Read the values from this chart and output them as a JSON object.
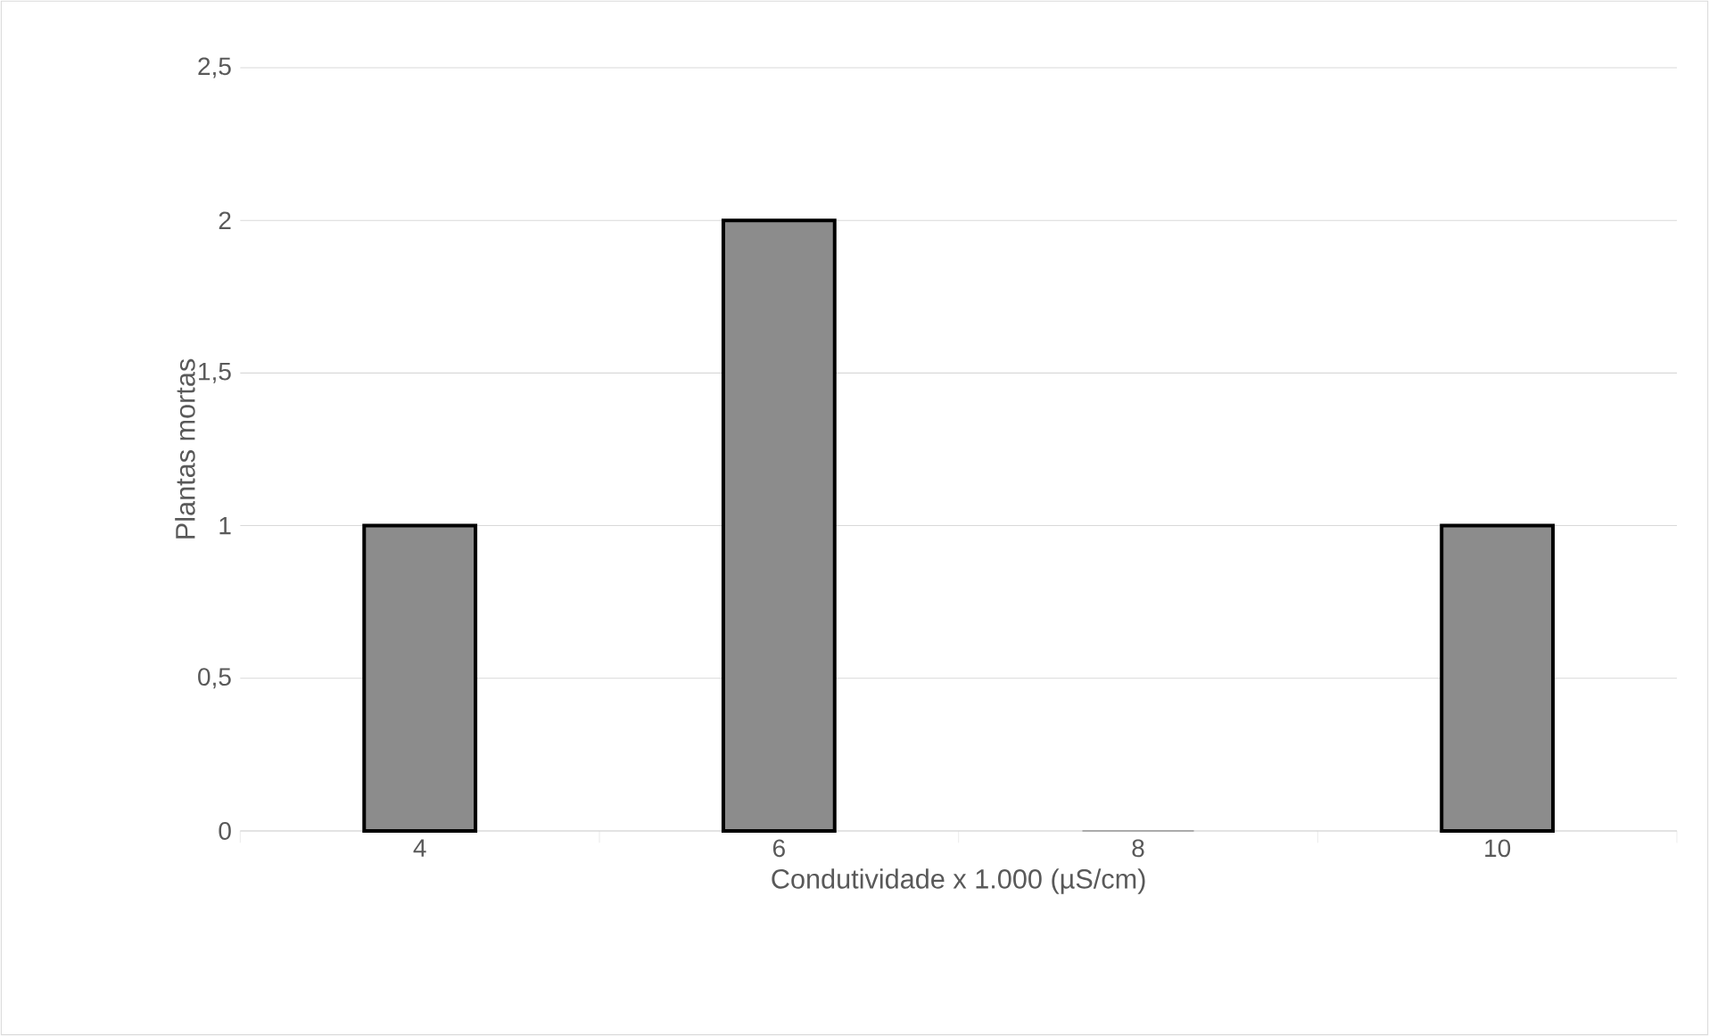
{
  "chart_data": {
    "type": "bar",
    "xlabel": "Condutividade x 1.000 (µS/cm)",
    "ylabel": "Plantas mortas",
    "categories": [
      "4",
      "6",
      "8",
      "10"
    ],
    "values": [
      1,
      2,
      0,
      1
    ],
    "color": "#8c8c8c",
    "ylim": [
      0,
      2.5
    ],
    "yticks": [
      0,
      {
        "value": 0.5,
        "label": "0,5"
      },
      1,
      {
        "value": 1.5,
        "label": "1,5"
      },
      2,
      {
        "value": 2.5,
        "label": "2,5"
      }
    ],
    "grid": "y"
  }
}
